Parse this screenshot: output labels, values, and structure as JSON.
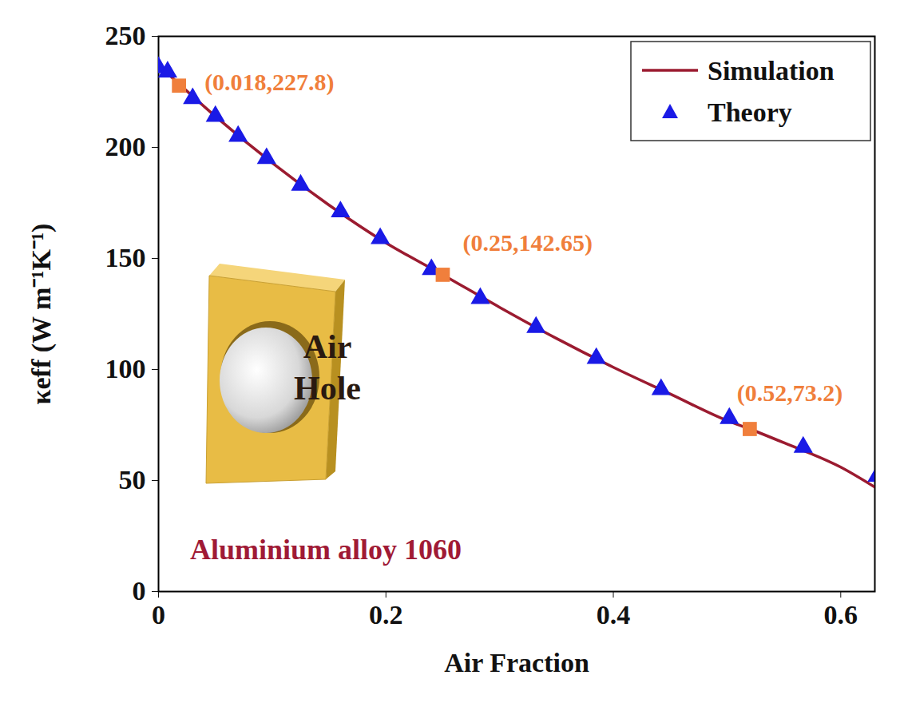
{
  "chart_data": {
    "type": "line",
    "x_label": "Air Fraction",
    "y_label": "κeff (W m⁻¹K⁻¹)",
    "xlim": [
      0,
      0.63
    ],
    "ylim": [
      0,
      250
    ],
    "xticks": [
      0,
      0.2,
      0.4,
      0.6
    ],
    "yticks": [
      0,
      50,
      100,
      150,
      200,
      250
    ],
    "grid": false,
    "legend": "upper right",
    "series": [
      {
        "name": "Simulation",
        "type": "line",
        "color": "#9b1b30",
        "line_style": "solid",
        "x": [
          0,
          0.05,
          0.1,
          0.15,
          0.2,
          0.25,
          0.3,
          0.35,
          0.4,
          0.45,
          0.5,
          0.52,
          0.55,
          0.6,
          0.63
        ],
        "values": [
          237,
          214,
          193,
          174,
          157,
          142.65,
          128,
          114,
          101,
          89,
          77,
          73.2,
          67,
          56,
          47
        ]
      },
      {
        "name": "Theory",
        "type": "scatter",
        "color": "#1a1ae6",
        "marker": "triangle",
        "x": [
          0,
          0.008,
          0.03,
          0.05,
          0.07,
          0.095,
          0.125,
          0.16,
          0.195,
          0.24,
          0.283,
          0.332,
          0.385,
          0.442,
          0.502,
          0.567,
          0.632
        ],
        "values": [
          236,
          234,
          222,
          214,
          205,
          195,
          183,
          171,
          159,
          145,
          132,
          119,
          105,
          91,
          78,
          65,
          52
        ]
      }
    ],
    "annotations": [
      {
        "x": 0.018,
        "y": 227.8,
        "text": "(0.018,227.8)",
        "color": "#f07f3c",
        "marker": "square"
      },
      {
        "x": 0.25,
        "y": 142.65,
        "text": "(0.25,142.65)",
        "color": "#f07f3c",
        "marker": "square"
      },
      {
        "x": 0.52,
        "y": 73.2,
        "text": "(0.52,73.2)",
        "color": "#f07f3c",
        "marker": "square"
      }
    ],
    "inset_label": "Air Hole",
    "material_label": "Aluminium alloy 1060",
    "material_color": "#a01a35"
  }
}
